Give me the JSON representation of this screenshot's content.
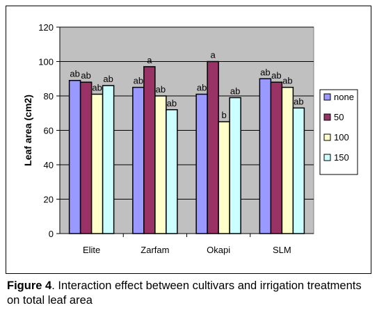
{
  "chart_data": {
    "type": "bar",
    "categories": [
      "Elite",
      "Zarfam",
      "Okapi",
      "SLM"
    ],
    "series": [
      {
        "name": "none",
        "values": [
          89,
          85,
          81,
          90
        ],
        "color": "#9999ff",
        "labels": [
          "ab",
          "ab",
          "ab",
          "ab"
        ]
      },
      {
        "name": "50",
        "values": [
          88,
          97,
          100,
          88
        ],
        "color": "#993366",
        "labels": [
          "ab",
          "a",
          "a",
          "ab"
        ]
      },
      {
        "name": "100",
        "values": [
          81,
          80,
          65,
          85
        ],
        "color": "#ffffcc",
        "labels": [
          "ab",
          "ab",
          "b",
          "ab"
        ]
      },
      {
        "name": "150",
        "values": [
          86,
          72,
          79,
          73
        ],
        "color": "#ccffff",
        "labels": [
          "ab",
          "ab",
          "ab",
          "ab"
        ]
      }
    ],
    "ylabel": "Leaf area (cm2)",
    "ylim": [
      0,
      120
    ],
    "yticks": [
      0,
      20,
      40,
      60,
      80,
      100,
      120
    ],
    "grid": true,
    "plot_background": "#c0c0c0",
    "legend_position": "right"
  },
  "caption": {
    "label": "Figure 4",
    "text": ". Interaction effect between cultivars and irrigation treatments on total leaf area"
  }
}
